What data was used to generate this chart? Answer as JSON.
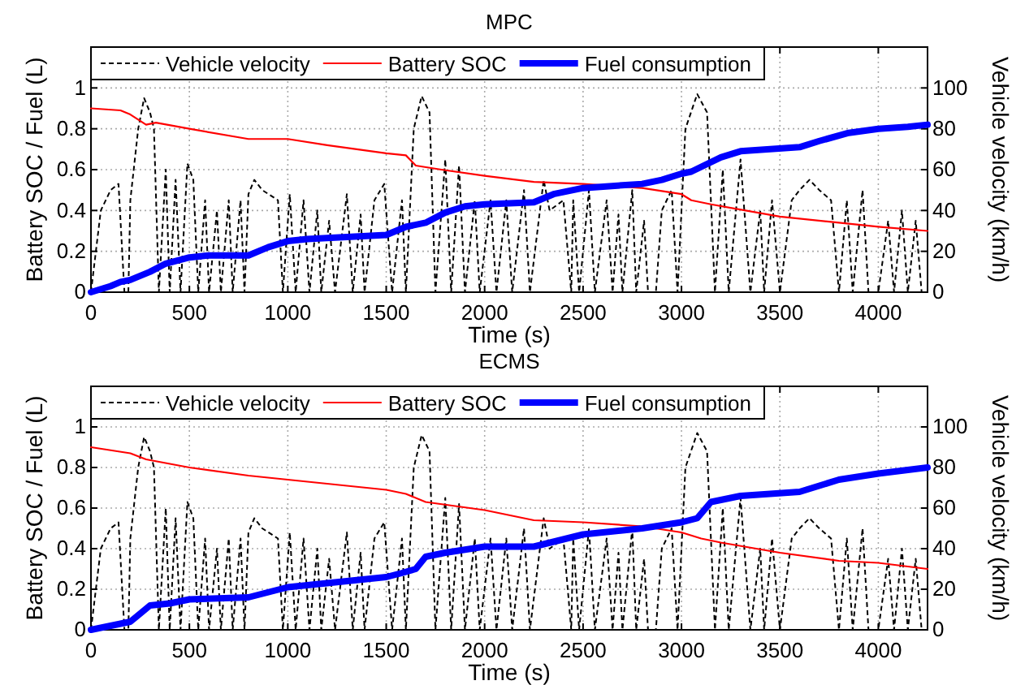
{
  "chart_data": [
    {
      "type": "line",
      "title": "MPC",
      "xlabel": "Time (s)",
      "ylabel": "Battery SOC / Fuel (L)",
      "y2label": "Vehicle velocity (km/h)",
      "xlim": [
        0,
        4250
      ],
      "xticks": [
        0,
        500,
        1000,
        1500,
        2000,
        2500,
        3000,
        3500,
        4000
      ],
      "ylim": [
        0,
        1.2
      ],
      "yticks": [
        0,
        0.2,
        0.4,
        0.6,
        0.8,
        1
      ],
      "y2lim": [
        0,
        120
      ],
      "y2ticks": [
        0,
        20,
        40,
        60,
        80,
        100
      ],
      "grid": true,
      "legend": "top left",
      "series": [
        {
          "name": "Vehicle velocity",
          "color": "#000000",
          "axis": "y2",
          "line_style": "dashed",
          "x": [
            0,
            50,
            100,
            140,
            170,
            190,
            200,
            240,
            270,
            300,
            320,
            345,
            380,
            400,
            430,
            455,
            490,
            520,
            545,
            580,
            600,
            640,
            660,
            700,
            720,
            760,
            780,
            800,
            830,
            870,
            950,
            975,
            1010,
            1040,
            1080,
            1110,
            1150,
            1170,
            1210,
            1240,
            1300,
            1330,
            1370,
            1390,
            1440,
            1490,
            1530,
            1580,
            1600,
            1640,
            1680,
            1720,
            1750,
            1800,
            1830,
            1870,
            1900,
            1950,
            1975,
            2030,
            2060,
            2110,
            2140,
            2200,
            2230,
            2300,
            2330,
            2400,
            2440,
            2450,
            2480,
            2530,
            2560,
            2620,
            2650,
            2680,
            2700,
            2750,
            2770,
            2810,
            2830,
            2870,
            2900,
            2950,
            2980,
            3020,
            3080,
            3130,
            3170,
            3210,
            3240,
            3300,
            3350,
            3400,
            3420,
            3460,
            3500,
            3560,
            3600,
            3650,
            3700,
            3760,
            3800,
            3840,
            3870,
            3920,
            3950,
            4000,
            4050,
            4080,
            4120,
            4150,
            4190,
            4220,
            4250
          ],
          "values": [
            0,
            40,
            50,
            53,
            0,
            0,
            45,
            80,
            95,
            88,
            80,
            0,
            60,
            0,
            55,
            0,
            63,
            55,
            0,
            45,
            0,
            40,
            0,
            45,
            0,
            45,
            0,
            48,
            55,
            50,
            45,
            0,
            48,
            0,
            45,
            0,
            40,
            0,
            35,
            0,
            48,
            0,
            38,
            0,
            45,
            53,
            0,
            45,
            0,
            80,
            96,
            88,
            0,
            65,
            0,
            62,
            0,
            45,
            0,
            45,
            0,
            45,
            0,
            50,
            0,
            55,
            40,
            45,
            0,
            45,
            0,
            50,
            0,
            45,
            0,
            38,
            0,
            50,
            0,
            35,
            0,
            0,
            40,
            50,
            0,
            80,
            97,
            88,
            0,
            60,
            0,
            65,
            0,
            40,
            0,
            45,
            0,
            45,
            50,
            55,
            50,
            45,
            0,
            45,
            0,
            50,
            0,
            0,
            35,
            0,
            40,
            0,
            35,
            0,
            0
          ]
        },
        {
          "name": "Battery SOC",
          "color": "#ff0000",
          "x": [
            0,
            150,
            200,
            280,
            330,
            500,
            800,
            1000,
            1200,
            1500,
            1600,
            1650,
            1780,
            2000,
            2250,
            2500,
            2800,
            3000,
            3050,
            3150,
            3500,
            3800,
            4000,
            4250
          ],
          "values": [
            0.9,
            0.89,
            0.87,
            0.82,
            0.83,
            0.8,
            0.75,
            0.75,
            0.72,
            0.68,
            0.67,
            0.62,
            0.6,
            0.57,
            0.54,
            0.53,
            0.51,
            0.48,
            0.45,
            0.43,
            0.37,
            0.34,
            0.32,
            0.3
          ]
        },
        {
          "name": "Fuel consumption",
          "color": "#0000ff",
          "x": [
            0,
            100,
            150,
            200,
            300,
            380,
            500,
            600,
            800,
            900,
            1000,
            1100,
            1500,
            1600,
            1700,
            1800,
            1900,
            2000,
            2250,
            2350,
            2500,
            2800,
            2900,
            3000,
            3050,
            3200,
            3300,
            3600,
            3700,
            3850,
            4000,
            4150,
            4250
          ],
          "values": [
            0,
            0.03,
            0.05,
            0.06,
            0.1,
            0.14,
            0.17,
            0.18,
            0.18,
            0.22,
            0.25,
            0.26,
            0.28,
            0.32,
            0.34,
            0.39,
            0.42,
            0.43,
            0.44,
            0.48,
            0.51,
            0.53,
            0.55,
            0.58,
            0.59,
            0.66,
            0.69,
            0.71,
            0.74,
            0.78,
            0.8,
            0.81,
            0.82
          ]
        }
      ]
    },
    {
      "type": "line",
      "title": "ECMS",
      "xlabel": "Time (s)",
      "ylabel": "Battery SOC / Fuel (L)",
      "y2label": "Vehicle velocity (km/h)",
      "xlim": [
        0,
        4250
      ],
      "xticks": [
        0,
        500,
        1000,
        1500,
        2000,
        2500,
        3000,
        3500,
        4000
      ],
      "ylim": [
        0,
        1.2
      ],
      "yticks": [
        0,
        0.2,
        0.4,
        0.6,
        0.8,
        1
      ],
      "y2lim": [
        0,
        120
      ],
      "y2ticks": [
        0,
        20,
        40,
        60,
        80,
        100
      ],
      "grid": true,
      "legend": "top left",
      "series": [
        {
          "name": "Vehicle velocity",
          "color": "#000000",
          "axis": "y2",
          "line_style": "dashed",
          "x": [
            0,
            50,
            100,
            140,
            170,
            190,
            200,
            240,
            270,
            300,
            320,
            345,
            380,
            400,
            430,
            455,
            490,
            520,
            545,
            580,
            600,
            640,
            660,
            700,
            720,
            760,
            780,
            800,
            830,
            870,
            950,
            975,
            1010,
            1040,
            1080,
            1110,
            1150,
            1170,
            1210,
            1240,
            1300,
            1330,
            1370,
            1390,
            1440,
            1490,
            1530,
            1580,
            1600,
            1640,
            1680,
            1720,
            1750,
            1800,
            1830,
            1870,
            1900,
            1950,
            1975,
            2030,
            2060,
            2110,
            2140,
            2200,
            2230,
            2300,
            2330,
            2400,
            2440,
            2450,
            2480,
            2530,
            2560,
            2620,
            2650,
            2680,
            2700,
            2750,
            2770,
            2810,
            2830,
            2870,
            2900,
            2950,
            2980,
            3020,
            3080,
            3130,
            3170,
            3210,
            3240,
            3300,
            3350,
            3400,
            3420,
            3460,
            3500,
            3560,
            3600,
            3650,
            3700,
            3760,
            3800,
            3840,
            3870,
            3920,
            3950,
            4000,
            4050,
            4080,
            4120,
            4150,
            4190,
            4220,
            4250
          ],
          "values": [
            0,
            40,
            50,
            53,
            0,
            0,
            45,
            80,
            95,
            88,
            80,
            0,
            60,
            0,
            55,
            0,
            63,
            55,
            0,
            45,
            0,
            40,
            0,
            45,
            0,
            45,
            0,
            48,
            55,
            50,
            45,
            0,
            48,
            0,
            45,
            0,
            40,
            0,
            35,
            0,
            48,
            0,
            38,
            0,
            45,
            53,
            0,
            45,
            0,
            80,
            96,
            88,
            0,
            65,
            0,
            62,
            0,
            45,
            0,
            45,
            0,
            45,
            0,
            50,
            0,
            55,
            40,
            45,
            0,
            45,
            0,
            50,
            0,
            45,
            0,
            38,
            0,
            50,
            0,
            35,
            0,
            0,
            40,
            50,
            0,
            80,
            97,
            88,
            0,
            60,
            0,
            65,
            0,
            40,
            0,
            45,
            0,
            45,
            50,
            55,
            50,
            45,
            0,
            45,
            0,
            50,
            0,
            0,
            35,
            0,
            40,
            0,
            35,
            0,
            0
          ]
        },
        {
          "name": "Battery SOC",
          "color": "#ff0000",
          "x": [
            0,
            200,
            280,
            500,
            800,
            1000,
            1500,
            1600,
            1700,
            2000,
            2250,
            2500,
            2800,
            3000,
            3100,
            3200,
            3500,
            3800,
            4000,
            4250
          ],
          "values": [
            0.9,
            0.87,
            0.84,
            0.8,
            0.76,
            0.74,
            0.69,
            0.67,
            0.63,
            0.59,
            0.54,
            0.53,
            0.51,
            0.48,
            0.45,
            0.43,
            0.38,
            0.34,
            0.33,
            0.3
          ]
        },
        {
          "name": "Fuel consumption",
          "color": "#0000ff",
          "x": [
            0,
            100,
            200,
            300,
            400,
            500,
            800,
            1000,
            1500,
            1580,
            1650,
            1700,
            1800,
            2000,
            2250,
            2500,
            2800,
            3000,
            3080,
            3150,
            3300,
            3600,
            3800,
            4000,
            4250
          ],
          "values": [
            0,
            0.02,
            0.04,
            0.12,
            0.13,
            0.15,
            0.16,
            0.21,
            0.26,
            0.28,
            0.3,
            0.36,
            0.38,
            0.41,
            0.41,
            0.47,
            0.5,
            0.53,
            0.55,
            0.63,
            0.66,
            0.68,
            0.74,
            0.77,
            0.8
          ]
        }
      ]
    }
  ]
}
